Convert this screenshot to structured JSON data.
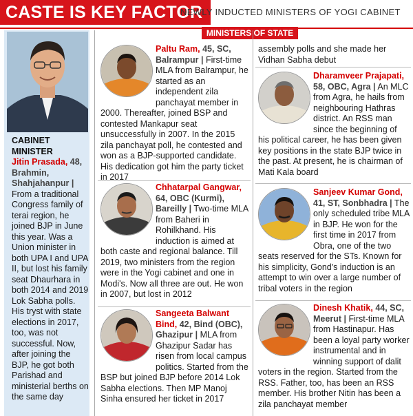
{
  "header": {
    "headline": "CASTE IS KEY FACTOR",
    "subhead": "NEWLY INDUCTED MINISTERS OF YOGI CABINET",
    "section_label": "MINISTERS OF STATE"
  },
  "cabinet": {
    "label": "CABINET MINISTER",
    "name": "Jitin Prasada,",
    "meta": "48, Brahmin, Shahjahanpur |",
    "bio": "From a traditional Congress family of terai region, he joined BJP in June this year. Was a Union minister in both UPA I and UPA II, but lost his family seat Dhaurhara in both 2014 and 2019 Lok Sabha polls. His tryst with state elections in 2017, too, was not successful. Now, after joining the BJP, he got both Parishad and ministerial berths on the same day"
  },
  "ministers": [
    {
      "name": "Paltu Ram,",
      "meta": "45, SC, Balrampur |",
      "bio": "First-time MLA from Balrampur, he started as an independent zila panchayat member in 2000. Thereafter, joined BSP and contested Mankapur seat unsuccessfully in 2007. In the 2015 zila panchayat poll, he contested and won as a BJP-supported candidate. His dedication got him the party ticket in 2017"
    },
    {
      "name": "Chhatarpal Gangwar,",
      "meta": "64, OBC (Kurmi), Bareilly |",
      "bio": "Two-time MLA from Baheri in Rohilkhand. His induction is aimed at both caste and regional balance. Till 2019, two ministers from the region were in the Yogi cabinet and one in Modi's. Now all three are out. He won in 2007, but lost in 2012"
    },
    {
      "name": "Sangeeta Balwant Bind,",
      "meta": "42, Bind (OBC), Ghazipur |",
      "bio": "MLA from Ghazipur Sadar has risen from local campus politics. Started from the BSP but joined BJP before 2014 Lok Sabha elections. Then MP Manoj Sinha ensured her ticket in 2017"
    },
    {
      "continuation": "assembly polls and she made her Vidhan Sabha debut"
    },
    {
      "name": "Dharamveer Prajapati,",
      "meta": "58, OBC, Agra |",
      "bio": "An MLC from Agra, he hails from neighbouring Hathras district. An RSS man since the beginning of his political career, he has been given key positions in the state BJP twice in the past. At present, he is chairman of Mati Kala board"
    },
    {
      "name": "Sanjeev Kumar Gond,",
      "meta": "41, ST, Sonbhadra |",
      "bio": "The only scheduled tribe MLA in BJP. He won for the first time in 2017 from Obra, one of the two seats reserved for the STs. Known for his simplicity, Gond's induction is an attempt to win over a large number of tribal voters in the region"
    },
    {
      "name": "Dinesh Khatik,",
      "meta": "44, SC, Meerut |",
      "bio": "First-time MLA from Hastinapur. Has been a loyal party worker instrumental and in winning support of dalit voters in the region. Started from the RSS. Father, too, has been an RSS member. His brother Nitin has been a zila panchayat member"
    }
  ],
  "colors": {
    "accent": "#d7141b",
    "panel": "#dce9f5"
  }
}
